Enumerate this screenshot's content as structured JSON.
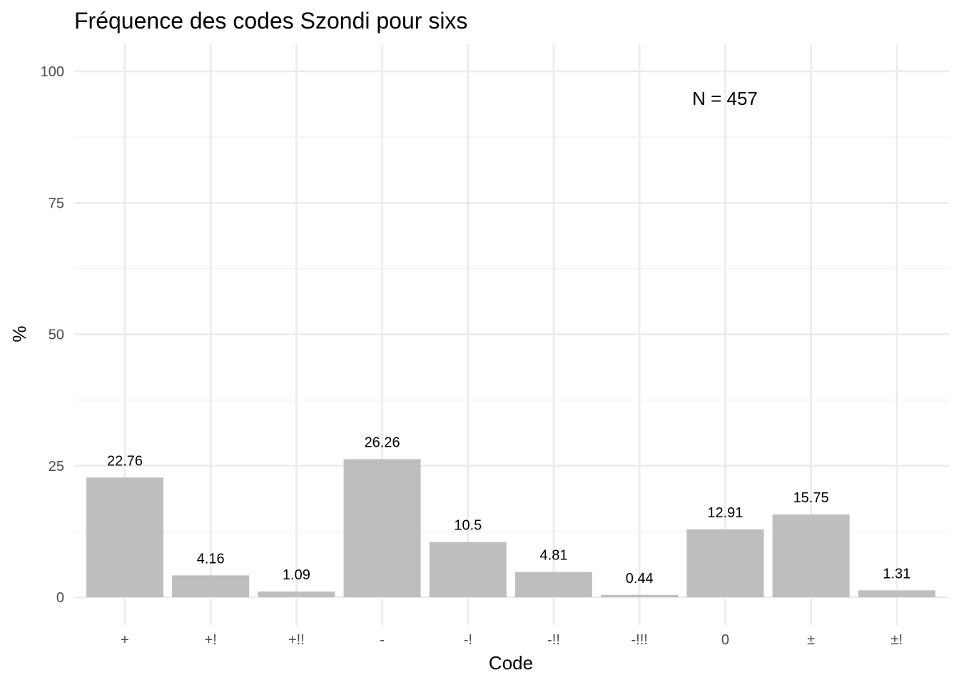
{
  "chart_data": {
    "type": "bar",
    "title": "Fréquence des codes Szondi pour sixs",
    "xlabel": "Code",
    "ylabel": "%",
    "categories": [
      "+",
      "+!",
      "+!!",
      "-",
      "-!",
      "-!!",
      "-!!!",
      "0",
      "±",
      "±!"
    ],
    "values": [
      22.76,
      4.16,
      1.09,
      26.26,
      10.5,
      4.81,
      0.44,
      12.91,
      15.75,
      1.31
    ],
    "value_labels": [
      "22.76",
      "4.16",
      "1.09",
      "26.26",
      "10.5",
      "4.81",
      "0.44",
      "12.91",
      "15.75",
      "1.31"
    ],
    "ylim": [
      0,
      100
    ],
    "yticks": [
      0,
      25,
      50,
      75,
      100
    ],
    "ytick_labels": [
      "0",
      "25",
      "50",
      "75",
      "100"
    ],
    "grid": true,
    "bar_color": "#bebebe",
    "annotation": "N = 457"
  }
}
